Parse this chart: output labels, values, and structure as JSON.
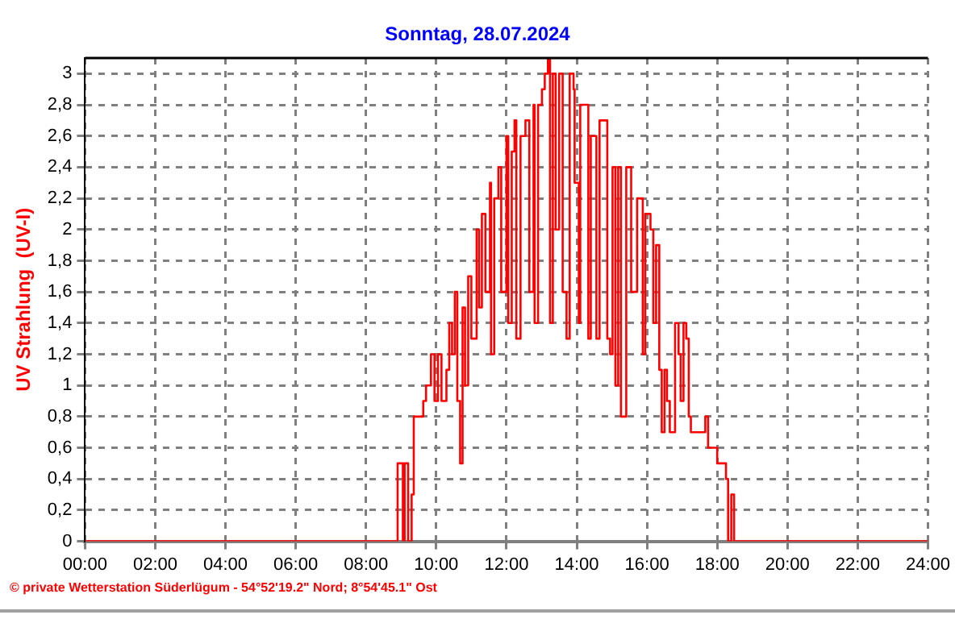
{
  "chart_data": {
    "type": "step",
    "title": "Sonntag, 28.07.2024",
    "ylabel": "UV Strahlung  (UV-I)",
    "annotations": [
      "© private Wetterstation Süderlügum  -  54°52'19.2\" Nord; 8°54'45.1\" Ost"
    ],
    "x": [
      0,
      8.9,
      9.05,
      9.1,
      9.2,
      9.3,
      9.36,
      9.63,
      9.71,
      9.85,
      9.95,
      10.05,
      10.15,
      10.29,
      10.37,
      10.45,
      10.53,
      10.6,
      10.68,
      10.75,
      10.82,
      10.91,
      11.0,
      11.15,
      11.22,
      11.3,
      11.4,
      11.53,
      11.56,
      11.65,
      11.77,
      11.85,
      12.0,
      12.05,
      12.15,
      12.23,
      12.28,
      12.4,
      12.54,
      12.65,
      12.77,
      12.8,
      12.9,
      13.01,
      13.09,
      13.18,
      13.24,
      13.32,
      13.4,
      13.5,
      13.6,
      13.71,
      13.8,
      13.91,
      13.94,
      14.06,
      14.1,
      14.25,
      14.33,
      14.4,
      14.48,
      14.56,
      14.65,
      14.79,
      14.87,
      14.95,
      15.02,
      15.1,
      15.18,
      15.26,
      15.41,
      15.55,
      15.72,
      15.88,
      15.95,
      16.1,
      16.18,
      16.26,
      16.35,
      16.42,
      16.5,
      16.57,
      16.65,
      16.8,
      16.9,
      16.96,
      17.04,
      17.12,
      17.19,
      17.25,
      17.66,
      17.74,
      18.0,
      18.25,
      18.31,
      18.4,
      18.48,
      24
    ],
    "series": [
      {
        "color": "#ff0000",
        "values": [
          0,
          0.5,
          0,
          0.5,
          0,
          0.3,
          0.8,
          0.9,
          1.0,
          1.2,
          0.9,
          1.2,
          0.9,
          1.1,
          1.4,
          1.2,
          1.6,
          0.9,
          0.5,
          1.5,
          1.0,
          1.7,
          1.3,
          2.0,
          1.5,
          2.1,
          1.6,
          2.3,
          1.2,
          2.2,
          2.4,
          1.6,
          2.6,
          1.4,
          2.5,
          2.7,
          1.3,
          2.6,
          2.7,
          1.6,
          2.8,
          1.4,
          2.8,
          2.9,
          3.0,
          3.1,
          1.4,
          3.0,
          2.0,
          3.0,
          1.6,
          1.3,
          3.0,
          2.9,
          2.3,
          1.4,
          2.8,
          2.8,
          1.3,
          2.6,
          2.6,
          1.3,
          2.7,
          2.7,
          1.3,
          1.2,
          2.4,
          1.0,
          2.4,
          0.8,
          2.4,
          1.6,
          2.2,
          1.2,
          2.1,
          2.0,
          1.4,
          1.9,
          1.1,
          0.7,
          1.1,
          0.9,
          0.7,
          1.4,
          1.2,
          0.9,
          1.4,
          1.3,
          0.8,
          0.7,
          0.8,
          0.6,
          0.5,
          0.4,
          0,
          0.3,
          0,
          0
        ]
      }
    ],
    "xlim": [
      0,
      24
    ],
    "xticks": [
      {
        "value": 0,
        "label": "00:00"
      },
      {
        "value": 2,
        "label": "02:00"
      },
      {
        "value": 4,
        "label": "04:00"
      },
      {
        "value": 6,
        "label": "06:00"
      },
      {
        "value": 8,
        "label": "08:00"
      },
      {
        "value": 10,
        "label": "10:00"
      },
      {
        "value": 12,
        "label": "12:00"
      },
      {
        "value": 14,
        "label": "14:00"
      },
      {
        "value": 16,
        "label": "16:00"
      },
      {
        "value": 18,
        "label": "18:00"
      },
      {
        "value": 20,
        "label": "20:00"
      },
      {
        "value": 22,
        "label": "22:00"
      },
      {
        "value": 24,
        "label": "24:00"
      }
    ],
    "ylim": [
      0,
      3.1
    ],
    "yticks": [
      0,
      {
        "value": 0.2,
        "label": "0,2"
      },
      {
        "value": 0.4,
        "label": "0,4"
      },
      {
        "value": 0.6,
        "label": "0,6"
      },
      {
        "value": 0.8,
        "label": "0,8"
      },
      1,
      {
        "value": 1.2,
        "label": "1,2"
      },
      {
        "value": 1.4,
        "label": "1,4"
      },
      {
        "value": 1.6,
        "label": "1,6"
      },
      {
        "value": 1.8,
        "label": "1,8"
      },
      2,
      {
        "value": 2.2,
        "label": "2,2"
      },
      {
        "value": 2.4,
        "label": "2,4"
      },
      {
        "value": 2.6,
        "label": "2,6"
      },
      {
        "value": 2.8,
        "label": "2,8"
      },
      3
    ],
    "grid": true,
    "marker": "none"
  }
}
